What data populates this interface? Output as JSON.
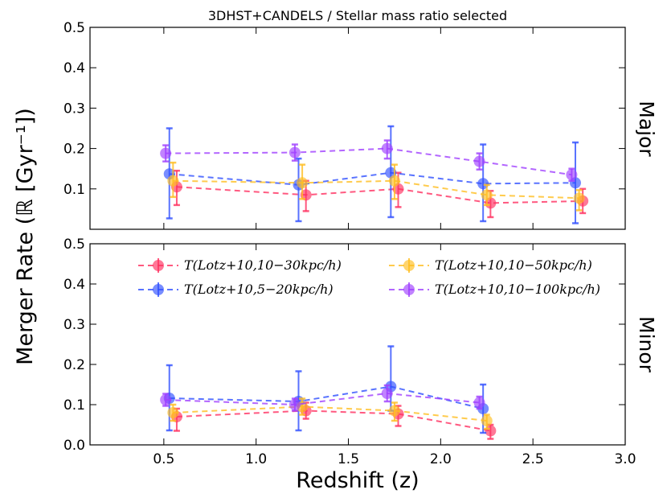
{
  "chart_data": {
    "type": "line",
    "title": "3DHST+CANDELS / Stellar mass ratio selected",
    "xlabel": "Redshift (z)",
    "ylabel": "Merger Rate (ℝ [Gyr⁻¹])",
    "xlim": [
      0.1,
      3.0
    ],
    "ylim": [
      0.0,
      0.5
    ],
    "xticks": [
      "0.5",
      "1.0",
      "1.5",
      "2.0",
      "2.5",
      "3.0"
    ],
    "yticks_top": [
      "0.1",
      "0.2",
      "0.3",
      "0.4",
      "0.5"
    ],
    "yticks_bottom": [
      "0.0",
      "0.1",
      "0.2",
      "0.3",
      "0.4",
      "0.5"
    ],
    "legend_location": "top of bottom panel",
    "series_styles": [
      {
        "name": "T(Lotz+10,10−30kpc/h)",
        "color": "#ff3060",
        "offset": 0.04
      },
      {
        "name": "T(Lotz+10,5−20kpc/h)",
        "color": "#3050ff",
        "offset": 0.0
      },
      {
        "name": "T(Lotz+10,10−50kpc/h)",
        "color": "#ffbe20",
        "offset": 0.02
      },
      {
        "name": "T(Lotz+10,10−100kpc/h)",
        "color": "#a040ff",
        "offset": -0.02
      }
    ],
    "panels": [
      {
        "label": "Major",
        "series": [
          {
            "name": "T(Lotz+10,10−30kpc/h)",
            "x": [
              0.53,
              1.23,
              1.73,
              2.23,
              2.73
            ],
            "y": [
              0.105,
              0.085,
              0.1,
              0.065,
              0.07
            ],
            "yerr_low": [
              0.045,
              0.04,
              0.045,
              0.035,
              0.03
            ],
            "yerr_high": [
              0.04,
              0.035,
              0.04,
              0.03,
              0.03
            ]
          },
          {
            "name": "T(Lotz+10,5−20kpc/h)",
            "x": [
              0.53,
              1.23,
              1.73,
              2.23,
              2.73
            ],
            "y": [
              0.137,
              0.11,
              0.14,
              0.113,
              0.115
            ],
            "yerr_low": [
              0.11,
              0.09,
              0.11,
              0.093,
              0.1
            ],
            "yerr_high": [
              0.113,
              0.065,
              0.115,
              0.097,
              0.1
            ]
          },
          {
            "name": "T(Lotz+10,10−50kpc/h)",
            "x": [
              0.53,
              1.23,
              1.73,
              2.23,
              2.73
            ],
            "y": [
              0.12,
              0.115,
              0.12,
              0.085,
              0.077
            ],
            "yerr_low": [
              0.04,
              0.04,
              0.045,
              0.025,
              0.03
            ],
            "yerr_high": [
              0.045,
              0.045,
              0.04,
              0.025,
              0.02
            ]
          },
          {
            "name": "T(Lotz+10,10−100kpc/h)",
            "x": [
              0.53,
              1.23,
              1.73,
              2.23,
              2.73
            ],
            "y": [
              0.188,
              0.19,
              0.2,
              0.168,
              0.135
            ],
            "yerr_low": [
              0.02,
              0.02,
              0.025,
              0.02,
              0.015
            ],
            "yerr_high": [
              0.02,
              0.02,
              0.02,
              0.02,
              0.015
            ]
          }
        ]
      },
      {
        "label": "Minor",
        "series": [
          {
            "name": "T(Lotz+10,10−30kpc/h)",
            "x": [
              0.53,
              1.23,
              1.73,
              2.23,
              2.73
            ],
            "y": [
              0.07,
              0.085,
              0.077,
              0.035,
              null
            ],
            "yerr_low": [
              0.035,
              0.02,
              0.03,
              0.02,
              0
            ],
            "yerr_high": [
              0.02,
              0.02,
              0.02,
              0.015,
              0
            ]
          },
          {
            "name": "T(Lotz+10,5−20kpc/h)",
            "x": [
              0.53,
              1.23,
              1.73,
              2.23,
              2.73
            ],
            "y": [
              0.116,
              0.108,
              0.145,
              0.09,
              null
            ],
            "yerr_low": [
              0.08,
              0.072,
              0.06,
              0.06,
              0
            ],
            "yerr_high": [
              0.082,
              0.075,
              0.1,
              0.06,
              0
            ]
          },
          {
            "name": "T(Lotz+10,10−50kpc/h)",
            "x": [
              0.53,
              1.23,
              1.73,
              2.23,
              2.73
            ],
            "y": [
              0.08,
              0.095,
              0.085,
              0.06,
              null
            ],
            "yerr_low": [
              0.02,
              0.02,
              0.025,
              0.02,
              0
            ],
            "yerr_high": [
              0.02,
              0.02,
              0.02,
              0.015,
              0
            ]
          },
          {
            "name": "T(Lotz+10,10−100kpc/h)",
            "x": [
              0.53,
              1.23,
              1.73,
              2.23,
              2.73
            ],
            "y": [
              0.112,
              0.1,
              0.128,
              0.105,
              null
            ],
            "yerr_low": [
              0.015,
              0.015,
              0.02,
              0.015,
              0
            ],
            "yerr_high": [
              0.015,
              0.015,
              0.02,
              0.015,
              0
            ]
          }
        ]
      }
    ]
  }
}
